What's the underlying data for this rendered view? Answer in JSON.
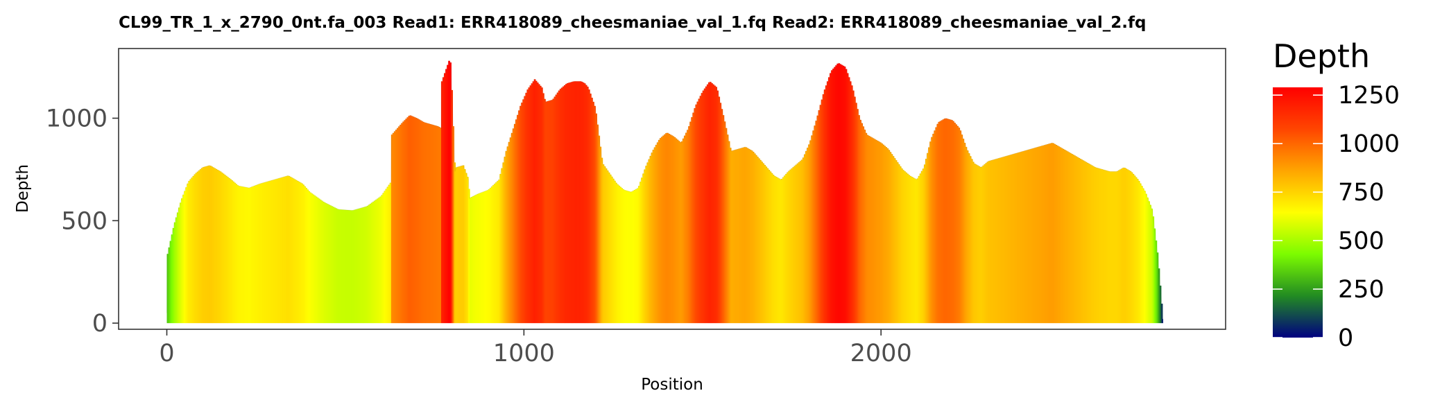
{
  "chart_data": {
    "type": "area",
    "title": "CL99_TR_1_x_2790_0nt.fa_003   Read1: ERR418089_cheesmaniae_val_1.fq   Read2: ERR418089_cheesmaniae_val_2.fq",
    "xlabel": "Position",
    "ylabel": "Depth",
    "xlim": [
      -135,
      2965
    ],
    "ylim": [
      -30,
      1340
    ],
    "x_ticks": [
      0,
      1000,
      2000
    ],
    "x_tick_labels": [
      "0",
      "1000",
      "2000"
    ],
    "y_ticks": [
      0,
      500,
      1000
    ],
    "y_tick_labels": [
      "0",
      "500",
      "1000"
    ],
    "grid": false,
    "legend": {
      "title": "Depth",
      "position": "right",
      "ticks": [
        0,
        250,
        500,
        750,
        1000,
        1250
      ],
      "tick_labels": [
        "0",
        "250",
        "500",
        "750",
        "1000",
        "1250"
      ],
      "range": [
        0,
        1290
      ],
      "colors": [
        "#000080",
        "#228B22",
        "#7CFC00",
        "#FFFF00",
        "#FFA500",
        "#FF4500",
        "#FF0000"
      ]
    },
    "series": [
      {
        "x": [
          0,
          1,
          20,
          40,
          60,
          80,
          100,
          120,
          150,
          180,
          200,
          230,
          260,
          300,
          340,
          380,
          400,
          440,
          480,
          520,
          560,
          600,
          628,
          630,
          660,
          680,
          700,
          720,
          740,
          760,
          769,
          770,
          790,
          795,
          807,
          810,
          830,
          845,
          847,
          870,
          900,
          930,
          950,
          970,
          990,
          1010,
          1030,
          1050,
          1060,
          1080,
          1100,
          1120,
          1140,
          1160,
          1170,
          1180,
          1190,
          1200,
          1220,
          1240,
          1260,
          1280,
          1300,
          1320,
          1340,
          1360,
          1380,
          1400,
          1420,
          1440,
          1460,
          1480,
          1500,
          1520,
          1540,
          1560,
          1580,
          1600,
          1620,
          1640,
          1660,
          1680,
          1700,
          1720,
          1740,
          1760,
          1780,
          1800,
          1820,
          1840,
          1860,
          1880,
          1900,
          1920,
          1940,
          1960,
          1980,
          2000,
          2020,
          2040,
          2060,
          2080,
          2100,
          2120,
          2140,
          2160,
          2180,
          2200,
          2220,
          2240,
          2260,
          2280,
          2300,
          2320,
          2340,
          2360,
          2380,
          2400,
          2420,
          2440,
          2460,
          2480,
          2500,
          2520,
          2540,
          2560,
          2580,
          2600,
          2620,
          2640,
          2660,
          2680,
          2700,
          2720,
          2740,
          2760,
          2775,
          2785,
          2789
        ],
        "y": [
          50,
          330,
          480,
          600,
          690,
          730,
          760,
          770,
          740,
          700,
          670,
          660,
          680,
          700,
          720,
          680,
          640,
          590,
          555,
          550,
          570,
          620,
          690,
          920,
          980,
          1015,
          1000,
          980,
          970,
          960,
          950,
          1180,
          1280,
          1270,
          740,
          760,
          770,
          700,
          610,
          630,
          650,
          700,
          840,
          950,
          1060,
          1140,
          1190,
          1150,
          1080,
          1090,
          1140,
          1170,
          1180,
          1180,
          1170,
          1150,
          1100,
          1050,
          780,
          730,
          680,
          650,
          640,
          660,
          760,
          840,
          900,
          930,
          910,
          880,
          950,
          1060,
          1130,
          1180,
          1150,
          1000,
          840,
          850,
          860,
          840,
          800,
          760,
          720,
          700,
          740,
          770,
          800,
          880,
          1000,
          1130,
          1230,
          1270,
          1250,
          1150,
          1000,
          920,
          900,
          880,
          850,
          800,
          750,
          720,
          700,
          760,
          900,
          980,
          1000,
          990,
          950,
          850,
          780,
          760,
          790,
          800,
          810,
          820,
          830,
          840,
          850,
          860,
          870,
          880,
          860,
          840,
          820,
          800,
          780,
          760,
          750,
          740,
          740,
          760,
          740,
          700,
          640,
          550,
          330,
          120,
          20
        ]
      }
    ]
  }
}
